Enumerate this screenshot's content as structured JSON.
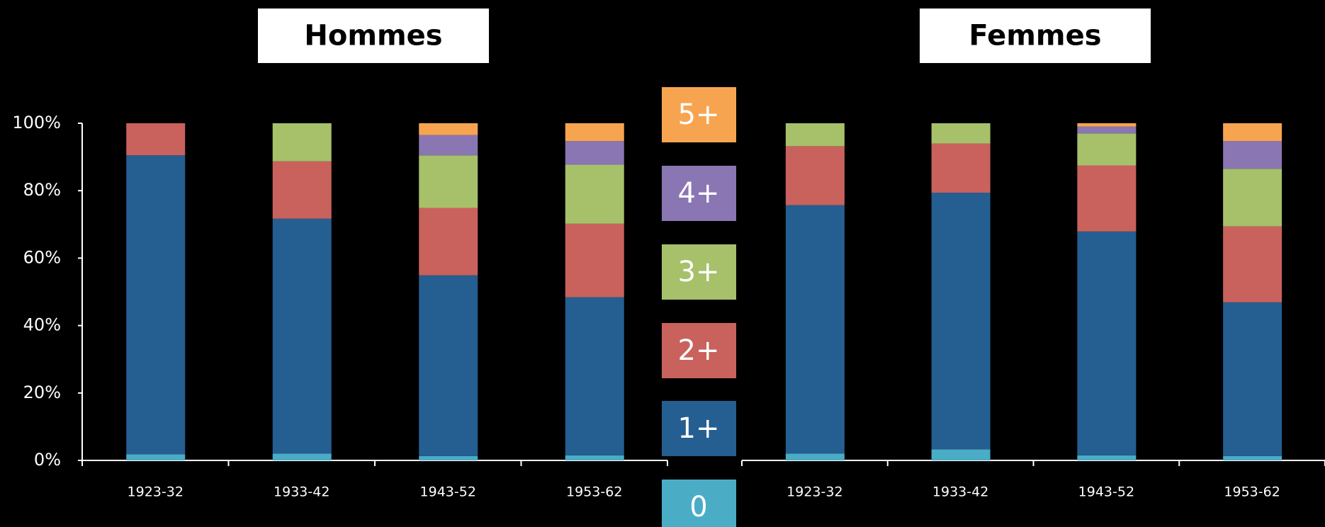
{
  "chart_data": [
    {
      "type": "stacked-bar",
      "title": "Hommes",
      "categories": [
        "1923-32",
        "1933-42",
        "1943-52",
        "1953-62"
      ],
      "ylim": [
        0,
        100
      ],
      "yticks": [
        {
          "value": 0,
          "label": "0%"
        },
        {
          "value": 20,
          "label": "20%"
        },
        {
          "value": 40,
          "label": "40%"
        },
        {
          "value": 60,
          "label": "60%"
        },
        {
          "value": 80,
          "label": "80%"
        },
        {
          "value": 100,
          "label": "100%"
        }
      ],
      "series": [
        {
          "name": "0",
          "color": "#4bacc6",
          "values": [
            1.8,
            2,
            1.3,
            1.5
          ]
        },
        {
          "name": "1+",
          "color": "#255e91",
          "values": [
            88.7,
            69.7,
            53.6,
            46.9
          ]
        },
        {
          "name": "2+",
          "color": "#c9625c",
          "values": [
            9.5,
            17,
            20,
            21.8
          ]
        },
        {
          "name": "3+",
          "color": "#a6c16a",
          "values": [
            0,
            11.3,
            15.6,
            17.5
          ]
        },
        {
          "name": "4+",
          "color": "#8a76b2",
          "values": [
            0,
            0,
            6,
            7
          ]
        },
        {
          "name": "5+",
          "color": "#f7a450",
          "values": [
            0,
            0,
            3.5,
            5.3
          ]
        }
      ]
    },
    {
      "type": "stacked-bar",
      "title": "Femmes",
      "categories": [
        "1923-32",
        "1933-42",
        "1943-52",
        "1953-62"
      ],
      "ylim": [
        0,
        100
      ],
      "series": [
        {
          "color": "#4bacc6",
          "values": [
            2,
            3.3,
            1.5,
            1.3
          ]
        },
        {
          "color": "#255e91",
          "values": [
            73.7,
            76.1,
            66.4,
            45.6
          ]
        },
        {
          "color": "#c9625c",
          "values": [
            17.5,
            14.6,
            19.6,
            22.5
          ]
        },
        {
          "color": "#a6c16a",
          "values": [
            6.8,
            6,
            9.5,
            17.1
          ]
        },
        {
          "color": "#8a76b2",
          "values": [
            0,
            0,
            2,
            8.2
          ]
        },
        {
          "color": "#f7a450",
          "values": [
            0,
            0,
            1,
            5.3
          ]
        }
      ]
    }
  ]
}
